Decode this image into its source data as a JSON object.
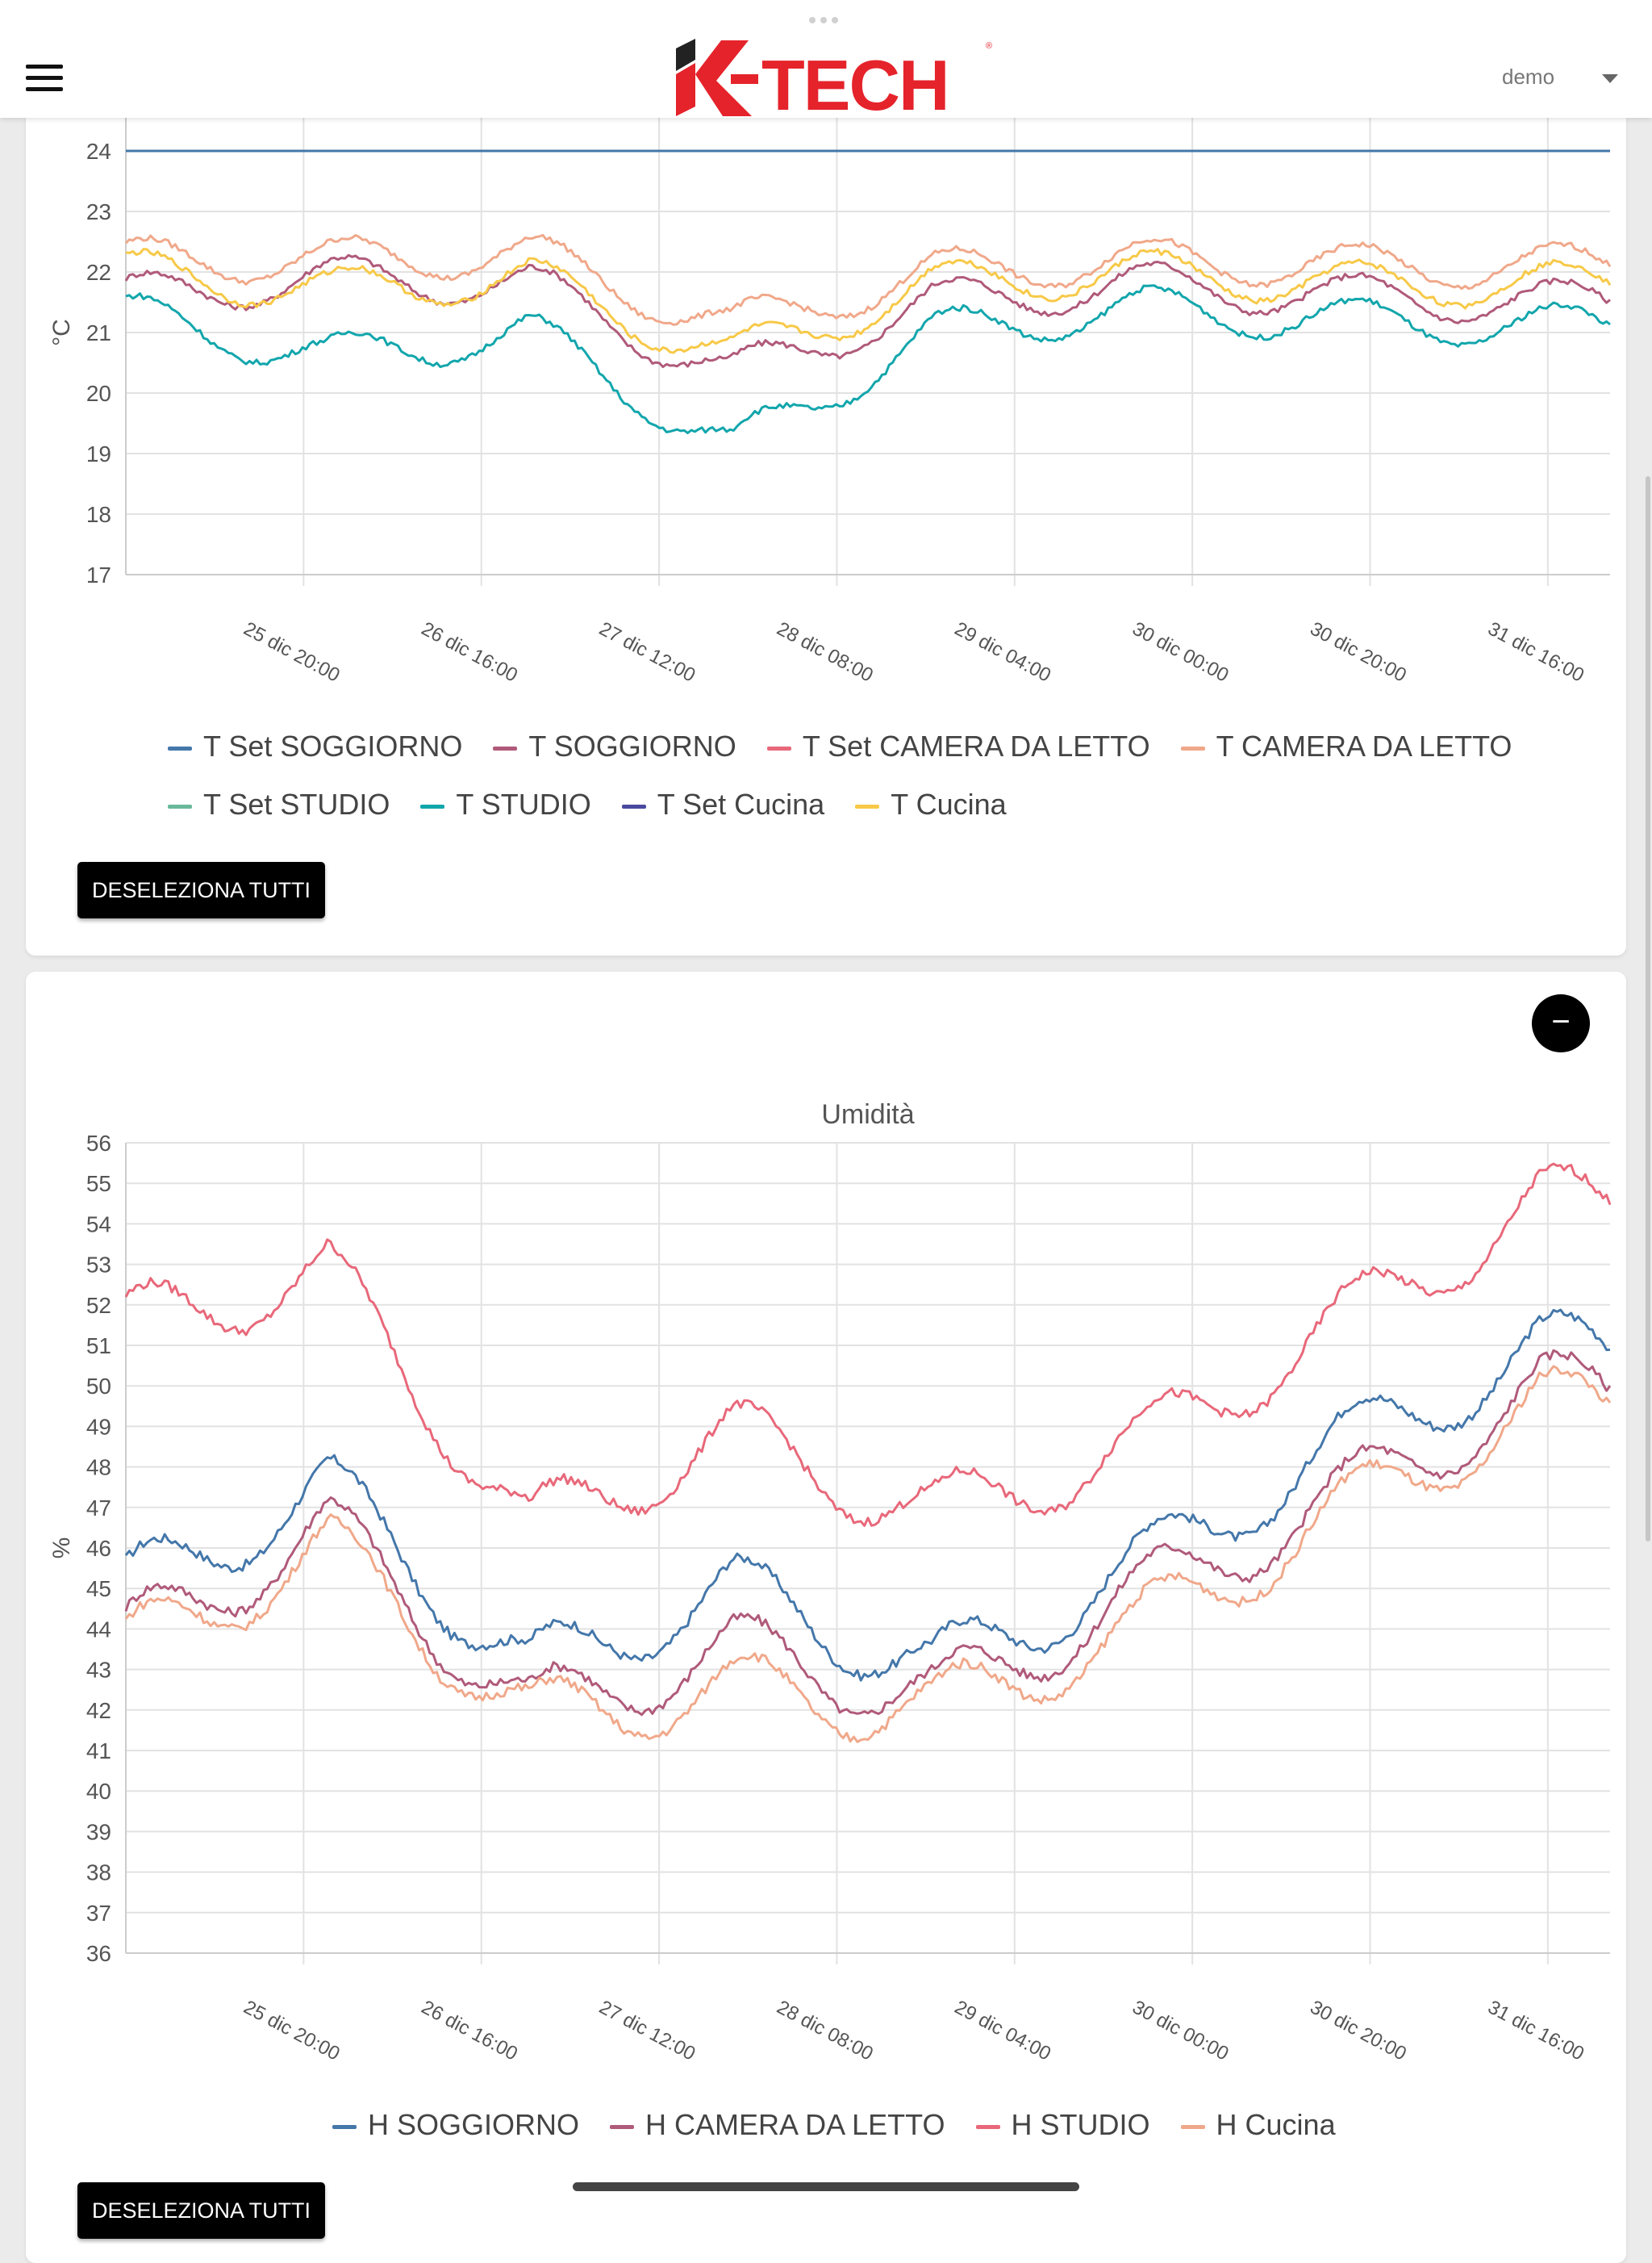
{
  "header": {
    "logo_text": "K-TECH",
    "user": "demo",
    "menu_icon": "hamburger-icon",
    "dropdown_icon": "caret-down-icon"
  },
  "temp_chart": {
    "button_label": "DESELEZIONA TUTTI",
    "legend": [
      {
        "name": "T Set SOGGIORNO",
        "color": "#4477aa"
      },
      {
        "name": "T SOGGIORNO",
        "color": "#b05a7a"
      },
      {
        "name": "T Set CAMERA DA LETTO",
        "color": "#e8687a"
      },
      {
        "name": "T CAMERA DA LETTO",
        "color": "#f0a88a"
      },
      {
        "name": "T Set STUDIO",
        "color": "#6ab89a"
      },
      {
        "name": "T STUDIO",
        "color": "#12a6ac"
      },
      {
        "name": "T Set Cucina",
        "color": "#4a4a9e"
      },
      {
        "name": "T Cucina",
        "color": "#f7c948"
      }
    ]
  },
  "hum_chart": {
    "title": "Umidità",
    "button_label": "DESELEZIONA TUTTI",
    "collapse_label": "−",
    "legend": [
      {
        "name": "H SOGGIORNO",
        "color": "#4477aa"
      },
      {
        "name": "H CAMERA DA LETTO",
        "color": "#b05a7a"
      },
      {
        "name": "H STUDIO",
        "color": "#e8687a"
      },
      {
        "name": "H Cucina",
        "color": "#f0a88a"
      }
    ]
  },
  "chart_data": [
    {
      "type": "line",
      "ylabel": "°C",
      "ylim": [
        17,
        25
      ],
      "yticks": [
        17,
        18,
        19,
        20,
        21,
        22,
        23,
        24,
        25
      ],
      "x": [
        "25 dic 20:00",
        "26 dic 16:00",
        "27 dic 12:00",
        "28 dic 08:00",
        "29 dic 04:00",
        "30 dic 00:00",
        "30 dic 20:00",
        "31 dic 16:00"
      ],
      "grid": true,
      "legend_position": "bottom",
      "series": [
        {
          "name": "T Set SOGGIORNO",
          "values": [
            24,
            24,
            24,
            24,
            24,
            24,
            24,
            24
          ]
        },
        {
          "name": "T SOGGIORNO",
          "values": [
            21.6,
            21.9,
            21.8,
            20.3,
            21.5,
            21.8,
            21.6,
            21.5
          ]
        },
        {
          "name": "T CAMERA DA LETTO",
          "values": [
            22.2,
            22.2,
            22.3,
            21.1,
            22.0,
            22.2,
            22.1,
            22.1
          ]
        },
        {
          "name": "T STUDIO",
          "values": [
            21.3,
            20.6,
            21.0,
            19.1,
            21.0,
            21.4,
            21.2,
            21.1
          ]
        },
        {
          "name": "T Cucina",
          "values": [
            22.0,
            21.7,
            21.9,
            20.6,
            21.8,
            22.0,
            21.8,
            21.8
          ]
        }
      ]
    },
    {
      "type": "line",
      "title": "Umidità",
      "ylabel": "%",
      "ylim": [
        36,
        56
      ],
      "yticks": [
        36,
        37,
        38,
        39,
        40,
        41,
        42,
        43,
        44,
        45,
        46,
        47,
        48,
        49,
        50,
        51,
        52,
        53,
        54,
        55,
        56
      ],
      "x": [
        "25 dic 20:00",
        "26 dic 16:00",
        "27 dic 12:00",
        "28 dic 08:00",
        "29 dic 04:00",
        "30 dic 00:00",
        "30 dic 20:00",
        "31 dic 16:00"
      ],
      "grid": true,
      "legend_position": "bottom",
      "series": [
        {
          "name": "H SOGGIORNO",
          "values": [
            45.0,
            47.5,
            43.0,
            45.0,
            43.0,
            45.5,
            48.5,
            50.9
          ]
        },
        {
          "name": "H CAMERA DA LETTO",
          "values": [
            43.8,
            46.5,
            42.0,
            43.5,
            42.3,
            44.8,
            47.2,
            49.9
          ]
        },
        {
          "name": "H STUDIO",
          "values": [
            51.5,
            52.8,
            46.5,
            48.8,
            46.8,
            48.5,
            51.5,
            54.5
          ]
        },
        {
          "name": "H Cucina",
          "values": [
            43.5,
            46.0,
            41.8,
            42.5,
            42.0,
            44.0,
            46.8,
            49.5
          ]
        }
      ]
    }
  ]
}
